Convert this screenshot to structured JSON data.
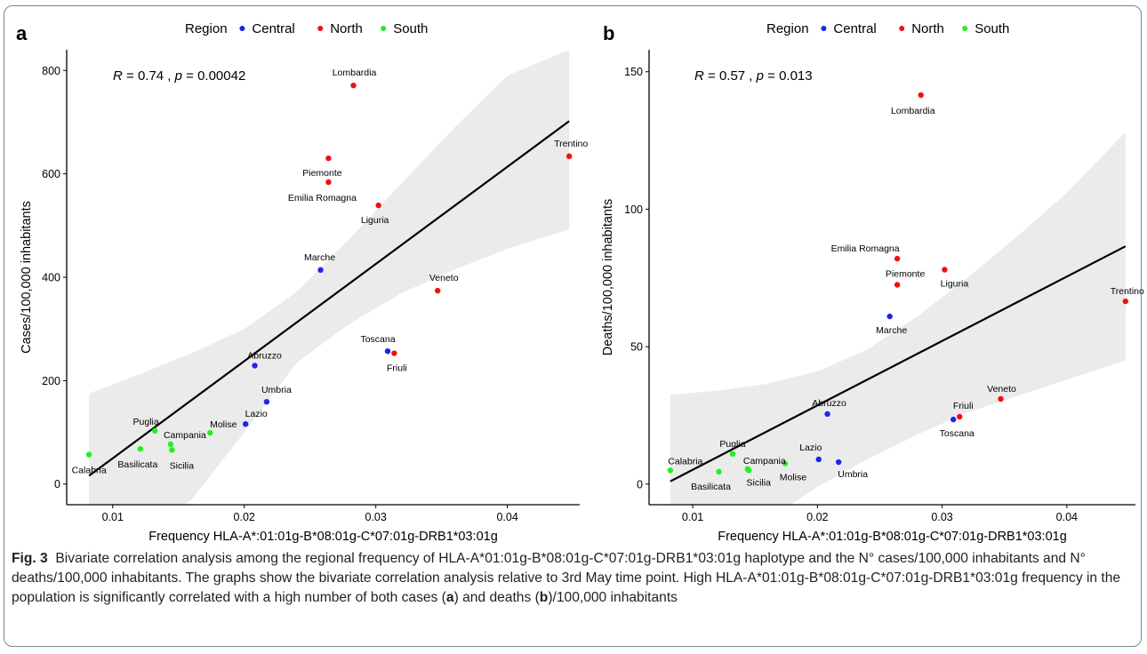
{
  "caption": {
    "label": "Fig. 3",
    "text_1": "Bivariate correlation analysis among the regional frequency of HLA-A*01:01g-B*08:01g-C*07:01g-DRB1*03:01g haplotype and the N° cases/100,000 inhabitants and N° deaths/100,000 inhabitants. The graphs show the bivariate correlation analysis relative to 3rd May time point. High HLA-A*01:01g-B*08:01g-C*07:01g-DRB1*03:01g frequency in the population is significantly correlated with a high number of both cases (",
    "ref_a": "a",
    "text_2": ") and deaths (",
    "ref_b": "b",
    "text_3": ")/100,000 inhabitants"
  },
  "colors": {
    "Central": "#2222ee",
    "North": "#ee1111",
    "South": "#22ee22",
    "band": "#ebebeb",
    "fit": "#000000"
  },
  "chart_data": [
    {
      "type": "scatter",
      "panel_label": "a",
      "legend_title": "Region",
      "legend_position": "top",
      "stat_text": {
        "R_label": "R",
        "R_value": " = 0.74 , ",
        "p_label": "p",
        "p_value": " = 0.00042"
      },
      "xlabel": "Frequency HLA-A*:01:01g-B*08:01g-C*07:01g-DRB1*03:01g",
      "ylabel": "Cases/100,000 inhabitants",
      "xlim": [
        0.0065,
        0.0455
      ],
      "ylim": [
        -40,
        840
      ],
      "xticks": [
        0.01,
        0.02,
        0.03,
        0.04
      ],
      "xtick_labels": [
        "0.01",
        "0.02",
        "0.03",
        "0.04"
      ],
      "yticks": [
        0,
        200,
        400,
        600,
        800
      ],
      "ytick_labels": [
        "0",
        "200",
        "400",
        "600",
        "800"
      ],
      "fit_line": {
        "x": [
          0.0082,
          0.0447
        ],
        "y": [
          16,
          702
        ]
      },
      "confidence_band": {
        "x": [
          0.0082,
          0.012,
          0.016,
          0.02,
          0.024,
          0.028,
          0.032,
          0.036,
          0.04,
          0.0447
        ],
        "upper": [
          175,
          212,
          253,
          300,
          372,
          474,
          583,
          690,
          790,
          840
        ],
        "lower": [
          -143,
          -95,
          -30,
          100,
          235,
          310,
          370,
          415,
          455,
          493
        ]
      },
      "series": [
        {
          "name": "Central",
          "points": [
            {
              "label": "Marche",
              "x": 0.0258,
              "y": 414
            },
            {
              "label": "Abruzzo",
              "x": 0.0208,
              "y": 229
            },
            {
              "label": "Umbria",
              "x": 0.0217,
              "y": 159
            },
            {
              "label": "Lazio",
              "x": 0.0201,
              "y": 116
            },
            {
              "label": "Toscana",
              "x": 0.0309,
              "y": 257
            }
          ]
        },
        {
          "name": "North",
          "points": [
            {
              "label": "Lombardia",
              "x": 0.0283,
              "y": 771
            },
            {
              "label": "Trentino",
              "x": 0.0447,
              "y": 634
            },
            {
              "label": "Piemonte",
              "x": 0.0264,
              "y": 630
            },
            {
              "label": "Emilia Romagna",
              "x": 0.0264,
              "y": 584
            },
            {
              "label": "Liguria",
              "x": 0.0302,
              "y": 539
            },
            {
              "label": "Veneto",
              "x": 0.0347,
              "y": 374
            },
            {
              "label": "Friuli",
              "x": 0.0314,
              "y": 253
            }
          ]
        },
        {
          "name": "South",
          "points": [
            {
              "label": "Calabria",
              "x": 0.0082,
              "y": 57
            },
            {
              "label": "Puglia",
              "x": 0.0132,
              "y": 103
            },
            {
              "label": "Campania",
              "x": 0.0144,
              "y": 77
            },
            {
              "label": "Basilicata",
              "x": 0.0121,
              "y": 68
            },
            {
              "label": "Sicilia",
              "x": 0.0145,
              "y": 66
            },
            {
              "label": "Molise",
              "x": 0.0174,
              "y": 99
            }
          ]
        }
      ]
    },
    {
      "type": "scatter",
      "panel_label": "b",
      "legend_title": "Region",
      "legend_position": "top",
      "stat_text": {
        "R_label": "R",
        "R_value": " = 0.57 , ",
        "p_label": "p",
        "p_value": " = 0.013"
      },
      "xlabel": "Frequency HLA-A*:01:01g-B*08:01g-C*07:01g-DRB1*03:01g",
      "ylabel": "Deaths/100,000 inhabitants",
      "xlim": [
        0.0065,
        0.0455
      ],
      "ylim": [
        -7.5,
        158
      ],
      "xticks": [
        0.01,
        0.02,
        0.03,
        0.04
      ],
      "xtick_labels": [
        "0.01",
        "0.02",
        "0.03",
        "0.04"
      ],
      "yticks": [
        0,
        50,
        100,
        150
      ],
      "ytick_labels": [
        "0",
        "50",
        "100",
        "150"
      ],
      "fit_line": {
        "x": [
          0.0082,
          0.0447
        ],
        "y": [
          1,
          86.5
        ]
      },
      "confidence_band": {
        "x": [
          0.0082,
          0.012,
          0.016,
          0.02,
          0.024,
          0.028,
          0.032,
          0.036,
          0.04,
          0.0447
        ],
        "upper": [
          32.5,
          34,
          36.5,
          41,
          49,
          61,
          75,
          90,
          106,
          128
        ],
        "lower": [
          -28,
          -22,
          -13,
          -1,
          9,
          18,
          26,
          32,
          38,
          45
        ]
      },
      "series": [
        {
          "name": "Central",
          "points": [
            {
              "label": "Marche",
              "x": 0.0258,
              "y": 61
            },
            {
              "label": "Abruzzo",
              "x": 0.0208,
              "y": 25.5
            },
            {
              "label": "Toscana",
              "x": 0.0309,
              "y": 23.5
            },
            {
              "label": "Lazio",
              "x": 0.0201,
              "y": 9
            },
            {
              "label": "Umbria",
              "x": 0.0217,
              "y": 8
            }
          ]
        },
        {
          "name": "North",
          "points": [
            {
              "label": "Lombardia",
              "x": 0.0283,
              "y": 141.5
            },
            {
              "label": "Emilia Romagna",
              "x": 0.0264,
              "y": 82
            },
            {
              "label": "Liguria",
              "x": 0.0302,
              "y": 78
            },
            {
              "label": "Piemonte",
              "x": 0.0264,
              "y": 72.5
            },
            {
              "label": "Trentino",
              "x": 0.0447,
              "y": 66.5
            },
            {
              "label": "Veneto",
              "x": 0.0347,
              "y": 31
            },
            {
              "label": "Friuli",
              "x": 0.0314,
              "y": 24.5
            }
          ]
        },
        {
          "name": "South",
          "points": [
            {
              "label": "Puglia",
              "x": 0.0132,
              "y": 11
            },
            {
              "label": "Molise",
              "x": 0.0174,
              "y": 7.5
            },
            {
              "label": "Campania",
              "x": 0.0144,
              "y": 5.5
            },
            {
              "label": "Sicilia",
              "x": 0.0145,
              "y": 5
            },
            {
              "label": "Calabria",
              "x": 0.0082,
              "y": 5
            },
            {
              "label": "Basilicata",
              "x": 0.0121,
              "y": 4.5
            }
          ]
        }
      ]
    }
  ]
}
